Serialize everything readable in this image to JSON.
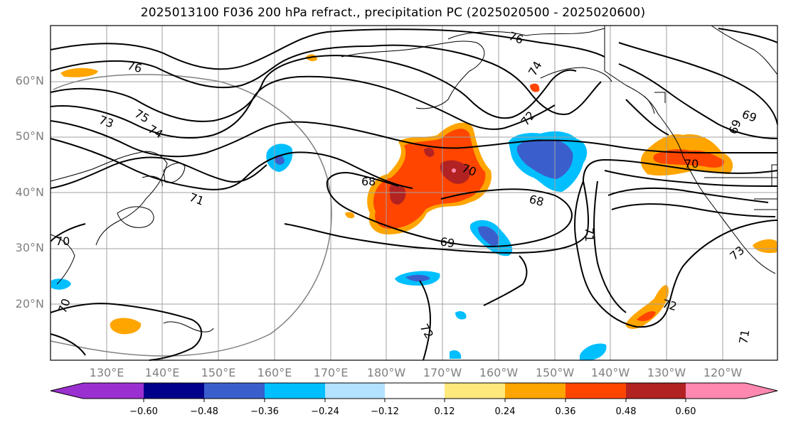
{
  "title": "2025013100 F036 200 hPa refract., precipitation PC (2025020500 - 2025020600)",
  "latitude_labels": [
    "60°N",
    "50°N",
    "40°N",
    "30°N",
    "20°N"
  ],
  "longitude_labels": [
    "130°E",
    "140°E",
    "150°E",
    "160°E",
    "170°E",
    "180°W",
    "170°W",
    "160°W",
    "150°W",
    "140°W",
    "130°W",
    "120°W"
  ],
  "contour_labels": [
    "76",
    "76",
    "75",
    "74",
    "73",
    "74",
    "71",
    "72",
    "70",
    "68",
    "68",
    "69",
    "71",
    "69",
    "69",
    "70",
    "70",
    "70",
    "72",
    "73",
    "71",
    "72"
  ],
  "colorbar": {
    "tick_labels": [
      "−0.60",
      "−0.48",
      "−0.36",
      "−0.24",
      "−0.12",
      "0.12",
      "0.24",
      "0.36",
      "0.48",
      "0.60"
    ],
    "colors": [
      "#9b30d0",
      "#00008b",
      "#3a5fcd",
      "#00bfff",
      "#b2e2ff",
      "#ffffff",
      "#ffe87c",
      "#ffa500",
      "#ff4500",
      "#b22222",
      "#ff88b0"
    ]
  }
}
